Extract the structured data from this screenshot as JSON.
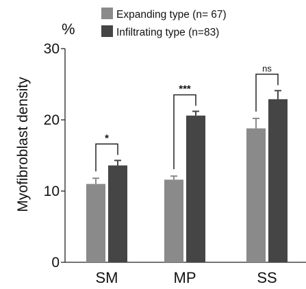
{
  "chart_data": {
    "type": "bar",
    "title": "",
    "unit_label": "%",
    "ylabel": "Myofibroblast density",
    "xlabel": "",
    "ylim": [
      0,
      30
    ],
    "yticks": [
      0,
      10,
      20,
      30
    ],
    "categories": [
      "SM",
      "MP",
      "SS"
    ],
    "series": [
      {
        "name": "Expanding type (n= 67)",
        "color": "#8a8a8a",
        "values": [
          11.0,
          11.6,
          18.8
        ],
        "errors": [
          0.8,
          0.5,
          1.4
        ]
      },
      {
        "name": "Infiltrating type (n=83)",
        "color": "#454545",
        "values": [
          13.6,
          20.6,
          22.9
        ],
        "errors": [
          0.7,
          0.6,
          1.2
        ]
      }
    ],
    "significance": [
      "*",
      "***",
      "ns"
    ],
    "grid": false,
    "legend_position": "top"
  }
}
